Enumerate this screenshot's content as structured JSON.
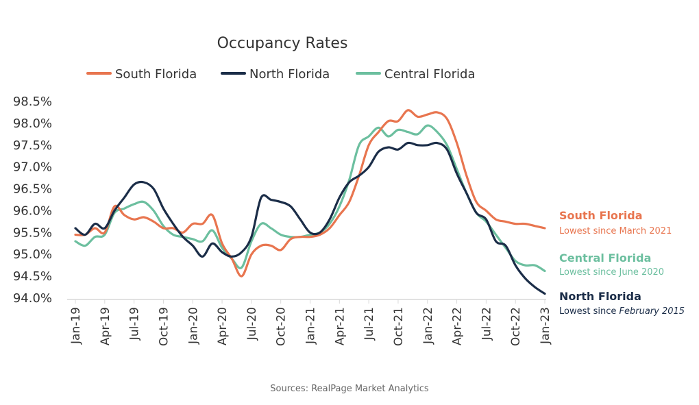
{
  "chart_data": {
    "type": "line",
    "title": "Occupancy Rates",
    "source": "Sources: RealPage Market Analytics",
    "xlabel": "",
    "ylabel": "",
    "ylim": [
      94.0,
      98.5
    ],
    "yticks": [
      "98.5%",
      "98.0%",
      "97.5%",
      "97.0%",
      "96.5%",
      "96.0%",
      "95.5%",
      "95.0%",
      "94.5%",
      "94.0%"
    ],
    "ytick_values": [
      98.5,
      98.0,
      97.5,
      97.0,
      96.5,
      96.0,
      95.5,
      95.0,
      94.5,
      94.0
    ],
    "xticks": [
      "Jan-19",
      "Apr-19",
      "Jul-19",
      "Oct-19",
      "Jan-20",
      "Apr-20",
      "Jul-20",
      "Oct-20",
      "Jan-21",
      "Apr-21",
      "Jul-21",
      "Oct-21",
      "Jan-22",
      "Apr-22",
      "Jul-22",
      "Oct-22",
      "Jan-23"
    ],
    "legend_position": "top",
    "grid": false,
    "series": [
      {
        "name": "South Florida",
        "color": "#e8754f",
        "values": [
          95.45,
          95.45,
          95.6,
          95.5,
          96.1,
          95.9,
          95.8,
          95.85,
          95.75,
          95.6,
          95.6,
          95.5,
          95.7,
          95.7,
          95.9,
          95.25,
          94.9,
          94.5,
          95.0,
          95.2,
          95.2,
          95.1,
          95.35,
          95.4,
          95.4,
          95.45,
          95.6,
          95.9,
          96.2,
          96.8,
          97.5,
          97.8,
          98.05,
          98.05,
          98.3,
          98.15,
          98.2,
          98.25,
          98.1,
          97.55,
          96.8,
          96.2,
          96.0,
          95.8,
          95.75,
          95.7,
          95.7,
          95.65,
          95.6
        ]
      },
      {
        "name": "North Florida",
        "color": "#1b2d48",
        "values": [
          95.6,
          95.45,
          95.7,
          95.6,
          96.0,
          96.3,
          96.6,
          96.65,
          96.5,
          96.05,
          95.7,
          95.4,
          95.2,
          94.95,
          95.25,
          95.05,
          94.95,
          95.05,
          95.4,
          96.3,
          96.25,
          96.2,
          96.1,
          95.8,
          95.5,
          95.5,
          95.8,
          96.3,
          96.65,
          96.8,
          97.0,
          97.35,
          97.45,
          97.4,
          97.55,
          97.5,
          97.5,
          97.55,
          97.4,
          96.85,
          96.4,
          95.95,
          95.8,
          95.3,
          95.2,
          94.75,
          94.45,
          94.25,
          94.1
        ]
      },
      {
        "name": "Central Florida",
        "color": "#6cbf9f",
        "values": [
          95.3,
          95.2,
          95.4,
          95.45,
          95.95,
          96.05,
          96.15,
          96.2,
          96.0,
          95.65,
          95.45,
          95.4,
          95.35,
          95.3,
          95.55,
          95.15,
          94.9,
          94.7,
          95.3,
          95.7,
          95.6,
          95.45,
          95.4,
          95.4,
          95.45,
          95.5,
          95.7,
          96.1,
          96.7,
          97.5,
          97.7,
          97.9,
          97.7,
          97.85,
          97.8,
          97.75,
          97.95,
          97.8,
          97.5,
          96.95,
          96.4,
          95.95,
          95.75,
          95.45,
          95.15,
          94.85,
          94.75,
          94.75,
          94.62
        ]
      }
    ],
    "annotations": [
      {
        "title": "South Florida",
        "subtitle": "Lowest since March 2021",
        "color": "#e8754f"
      },
      {
        "title": "Central Florida",
        "subtitle": "Lowest since June 2020",
        "color": "#6cbf9f"
      },
      {
        "title": "North Florida",
        "subtitle_prefix": "Lowest since ",
        "subtitle_italic": "February 2015",
        "color": "#1b2d48"
      }
    ]
  }
}
